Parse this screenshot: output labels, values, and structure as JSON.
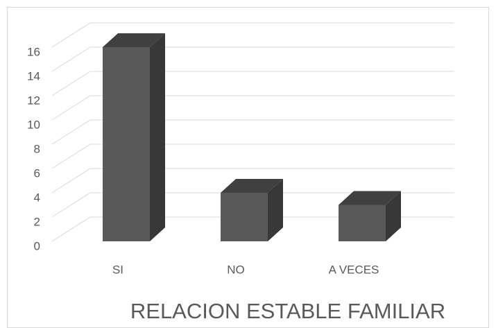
{
  "chart_data": {
    "type": "bar3d",
    "title": "RELACION ESTABLE FAMILIAR",
    "categories": [
      "SI",
      "NO",
      "A VECES"
    ],
    "values": [
      16,
      4,
      3
    ],
    "color": "#595959",
    "ylim": [
      0,
      16
    ],
    "yticks": [
      0,
      2,
      4,
      6,
      8,
      10,
      12,
      14,
      16
    ],
    "grid": true
  }
}
